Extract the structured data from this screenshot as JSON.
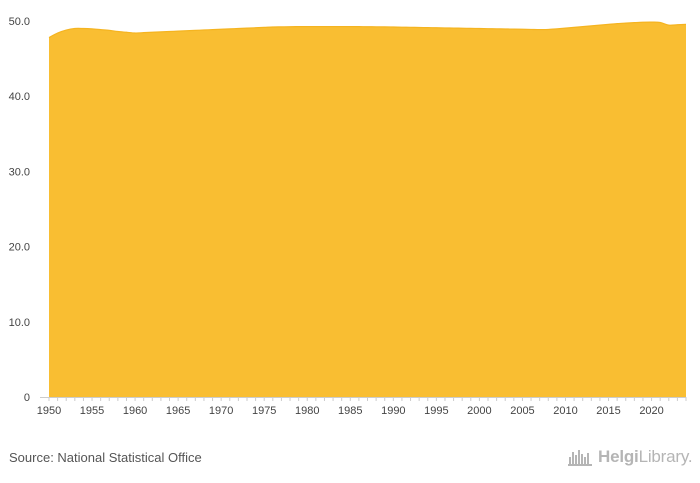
{
  "chart_data": {
    "type": "area",
    "title": "",
    "xlabel": "",
    "ylabel": "",
    "x": [
      1950,
      1951,
      1952,
      1953,
      1954,
      1955,
      1956,
      1957,
      1958,
      1959,
      1960,
      1961,
      1962,
      1963,
      1964,
      1965,
      1966,
      1967,
      1968,
      1969,
      1970,
      1971,
      1972,
      1973,
      1974,
      1975,
      1976,
      1977,
      1978,
      1979,
      1980,
      1981,
      1982,
      1983,
      1984,
      1985,
      1986,
      1987,
      1988,
      1989,
      1990,
      1991,
      1992,
      1993,
      1994,
      1995,
      1996,
      1997,
      1998,
      1999,
      2000,
      2001,
      2002,
      2003,
      2004,
      2005,
      2006,
      2007,
      2008,
      2009,
      2010,
      2011,
      2012,
      2013,
      2014,
      2015,
      2016,
      2017,
      2018,
      2019,
      2020,
      2021,
      2022,
      2023,
      2024
    ],
    "series": [
      {
        "values": [
          47.8,
          48.4,
          48.8,
          49.0,
          49.0,
          48.95,
          48.85,
          48.75,
          48.6,
          48.5,
          48.4,
          48.45,
          48.5,
          48.55,
          48.6,
          48.65,
          48.7,
          48.75,
          48.8,
          48.85,
          48.9,
          48.95,
          49.0,
          49.05,
          49.1,
          49.15,
          49.2,
          49.22,
          49.24,
          49.25,
          49.26,
          49.26,
          49.26,
          49.26,
          49.26,
          49.26,
          49.25,
          49.24,
          49.23,
          49.22,
          49.2,
          49.18,
          49.16,
          49.14,
          49.12,
          49.1,
          49.08,
          49.06,
          49.04,
          49.02,
          49.0,
          48.98,
          48.96,
          48.94,
          48.92,
          48.9,
          48.88,
          48.86,
          48.87,
          48.95,
          49.05,
          49.15,
          49.25,
          49.35,
          49.45,
          49.55,
          49.65,
          49.72,
          49.78,
          49.83,
          49.85,
          49.8,
          49.45,
          49.5,
          49.55
        ],
        "color": "#f9be32"
      }
    ],
    "x_tick_labels": [
      "1950",
      "1955",
      "1960",
      "1965",
      "1970",
      "1975",
      "1980",
      "1985",
      "1990",
      "1995",
      "2000",
      "2005",
      "2010",
      "2015",
      "2020"
    ],
    "y_tick_labels": [
      "0",
      "10.0",
      "20.0",
      "30.0",
      "40.0",
      "50.0"
    ],
    "ylim": [
      0,
      50
    ],
    "xlim": [
      1950,
      2024
    ],
    "grid": false,
    "legend": "none"
  },
  "footer": {
    "source": "Source: National Statistical Office",
    "brand_strong": "Helgi",
    "brand_light": "Library."
  },
  "colors": {
    "area_fill": "#f9be32",
    "area_stroke": "#f5b420",
    "axis": "#cccccc",
    "brand": "#b5b5b5"
  },
  "icons": {
    "brand_logo": "city-skyline-icon"
  }
}
